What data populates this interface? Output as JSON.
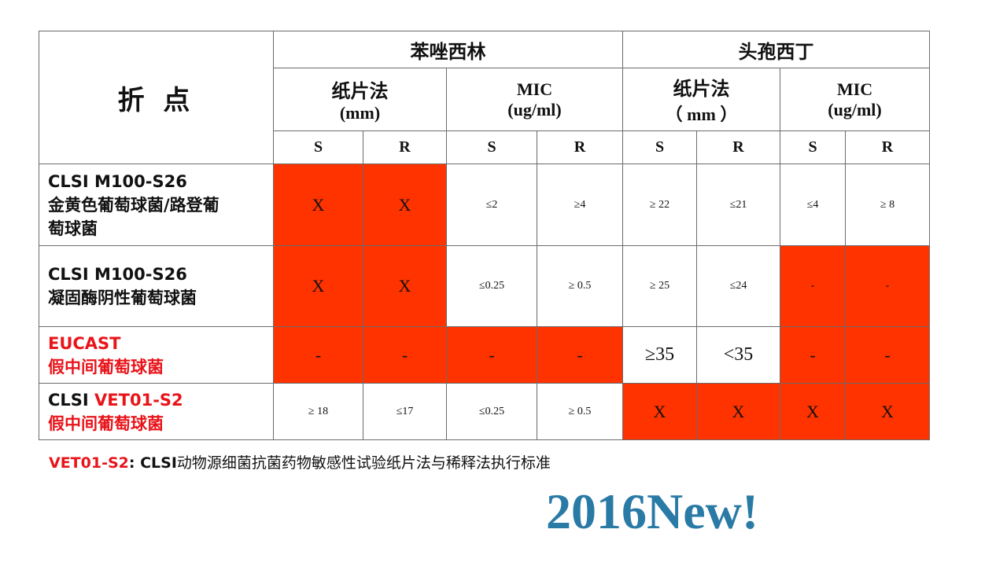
{
  "table": {
    "corner_label": "折 点",
    "drugs": [
      {
        "name": "苯唑西林"
      },
      {
        "name": "头孢西丁"
      }
    ],
    "methods": [
      {
        "name": "纸片法",
        "unit": "(mm)"
      },
      {
        "name": "MIC",
        "unit": "(ug/ml)"
      },
      {
        "name": "纸片法",
        "unit": "（ mm ）"
      },
      {
        "name": "MIC",
        "unit": "(ug/ml)"
      }
    ],
    "sr_labels": [
      "S",
      "R",
      "S",
      "R",
      "S",
      "R",
      "S",
      "R"
    ],
    "rows": [
      {
        "label_lines": [
          "CLSI M100-S26",
          "金黄色葡萄球菌/路登葡",
          "萄球菌"
        ],
        "cells": [
          {
            "text": "X",
            "filled": true
          },
          {
            "text": "X",
            "filled": true
          },
          {
            "text": "≤2",
            "filled": false
          },
          {
            "text": "≥4",
            "filled": false
          },
          {
            "text": "≥ 22",
            "filled": false
          },
          {
            "text": "≤21",
            "filled": false
          },
          {
            "text": "≤4",
            "filled": false
          },
          {
            "text": "≥ 8",
            "filled": false
          }
        ]
      },
      {
        "label_lines": [
          "CLSI M100-S26",
          "凝固酶阴性葡萄球菌"
        ],
        "cells": [
          {
            "text": "X",
            "filled": true
          },
          {
            "text": "X",
            "filled": true
          },
          {
            "text": "≤0.25",
            "filled": false
          },
          {
            "text": "≥ 0.5",
            "filled": false
          },
          {
            "text": "≥ 25",
            "filled": false
          },
          {
            "text": "≤24",
            "filled": false
          },
          {
            "text": "-",
            "filled": true
          },
          {
            "text": "-",
            "filled": true
          }
        ]
      },
      {
        "label_lines": [
          "EUCAST",
          "假中间葡萄球菌"
        ],
        "cells": [
          {
            "text": "-",
            "filled": true
          },
          {
            "text": "-",
            "filled": true
          },
          {
            "text": "-",
            "filled": true
          },
          {
            "text": "-",
            "filled": true
          },
          {
            "text": "≥35",
            "filled": false
          },
          {
            "text": "<35",
            "filled": false
          },
          {
            "text": "-",
            "filled": true
          },
          {
            "text": "-",
            "filled": true
          }
        ]
      },
      {
        "label_prefix": "CLSI ",
        "label_red": "VET01-S2",
        "label_line2": "假中间葡萄球菌",
        "cells": [
          {
            "text": "≥ 18",
            "filled": false
          },
          {
            "text": "≤17",
            "filled": false
          },
          {
            "text": "≤0.25",
            "filled": false
          },
          {
            "text": "≥ 0.5",
            "filled": false
          },
          {
            "text": "X",
            "filled": true
          },
          {
            "text": "X",
            "filled": true
          },
          {
            "text": "X",
            "filled": true
          },
          {
            "text": "X",
            "filled": true
          }
        ]
      }
    ]
  },
  "footnote": {
    "tag": "VET01-S2",
    "sep": ": ",
    "org": "CLSI",
    "text": "动物源细菌抗菌药物敏感性试验纸片法与稀释法执行标准"
  },
  "banner": "2016New!",
  "colors": {
    "fill_red": "#ff3300",
    "text_red": "#e8141a",
    "banner_blue": "#2a7aa6",
    "border": "#6b6b6b"
  }
}
